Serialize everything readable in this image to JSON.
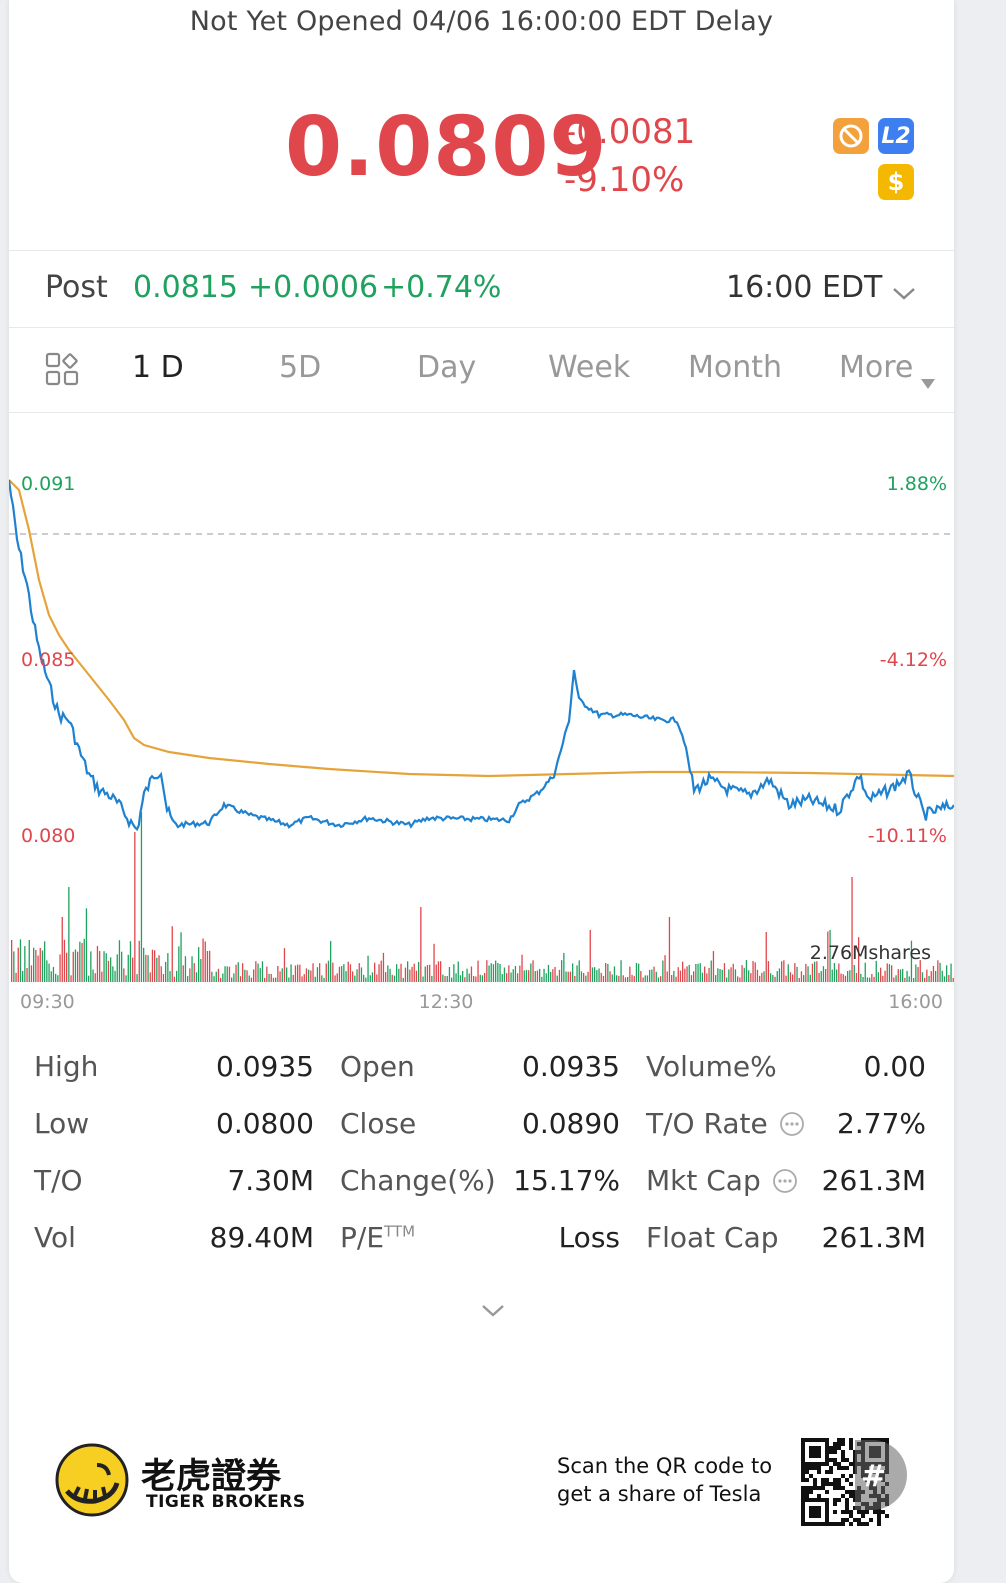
{
  "status_line": "Not Yet Opened 04/06 16:00:00 EDT Delay",
  "quote": {
    "price": "0.0809",
    "change": "-0.0081",
    "change_pct": "-9.10%"
  },
  "badges": {
    "l2": "L2",
    "dollar": "$"
  },
  "post": {
    "label": "Post",
    "price": "0.0815",
    "change": "+0.0006",
    "change_pct": "+0.74%",
    "time": "16:00 EDT"
  },
  "tabs": [
    "1 D",
    "5D",
    "Day",
    "Week",
    "Month",
    "More"
  ],
  "colors": {
    "up": "#e0474c",
    "down": "#1fa25f",
    "line": "#1f82d1",
    "avg": "#e5a33a"
  },
  "chart": {
    "y_left_top": "0.091",
    "y_left_mid": "0.085",
    "y_left_bot": "0.080",
    "y_right_top": "1.88%",
    "y_right_mid": "-4.12%",
    "y_right_bot": "-10.11%",
    "x_start": "09:30",
    "x_mid": "12:30",
    "x_end": "16:00",
    "volume_label": "2.76Mshares"
  },
  "chart_data": {
    "type": "line",
    "x": [
      "09:30",
      "12:30",
      "16:00"
    ],
    "ylim": [
      0.08,
      0.091
    ],
    "series": [],
    "volume_max": "2.76Mshares"
  },
  "stats": {
    "col1": [
      {
        "label": "High",
        "value": "0.0935"
      },
      {
        "label": "Low",
        "value": "0.0800"
      },
      {
        "label": "T/O",
        "value": "7.30M"
      },
      {
        "label": "Vol",
        "value": "89.40M"
      }
    ],
    "col2": [
      {
        "label": "Open",
        "value": "0.0935"
      },
      {
        "label": "Close",
        "value": "0.0890"
      },
      {
        "label": "Change(%)",
        "value": "15.17%"
      },
      {
        "label": "P/E",
        "sup": "TTM",
        "value": "Loss"
      }
    ],
    "col3": [
      {
        "label": "Volume%",
        "value": "0.00"
      },
      {
        "label": "T/O Rate",
        "value": "2.77%"
      },
      {
        "label": "Mkt Cap",
        "value": "261.3M"
      },
      {
        "label": "Float Cap",
        "value": "261.3M"
      }
    ]
  },
  "footer": {
    "brand_cn": "老虎證券",
    "brand_en": "TIGER BROKERS",
    "qr_text_1": "Scan the QR code to",
    "qr_text_2": "get a share of Tesla"
  }
}
